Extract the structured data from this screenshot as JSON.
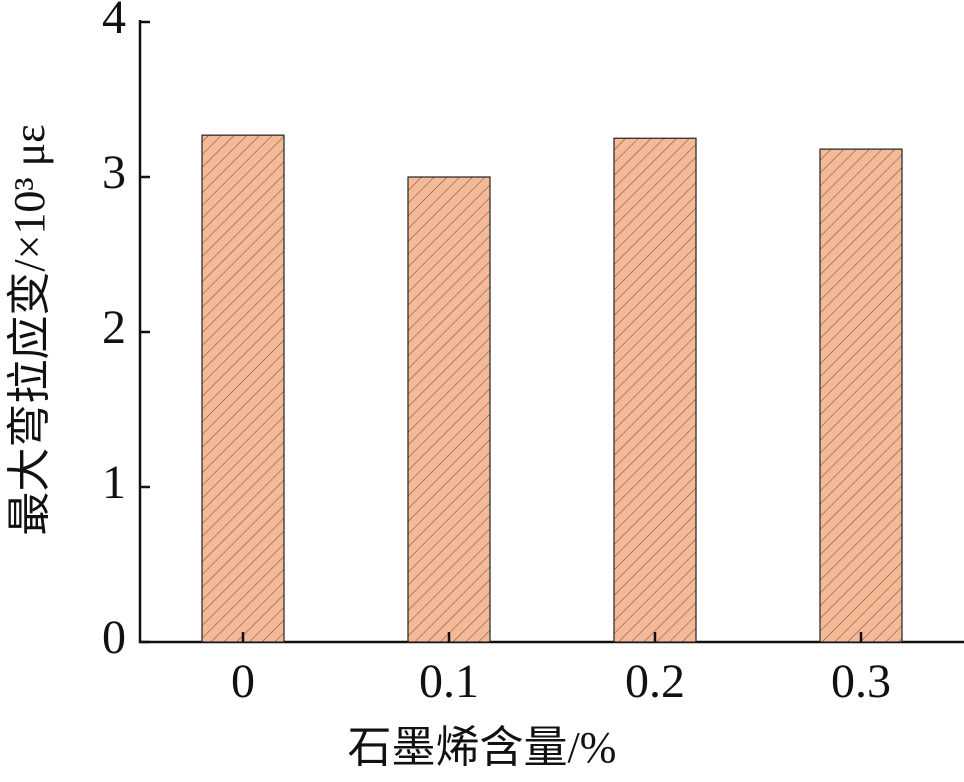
{
  "chart_data": {
    "type": "bar",
    "x_label": "石墨烯含量/%",
    "y_label": "最大弯拉应变/×10³ με",
    "categories": [
      "0",
      "0.1",
      "0.2",
      "0.3"
    ],
    "values": [
      3.27,
      3.0,
      3.25,
      3.18
    ],
    "color": "#f4b996",
    "ylim": [
      0,
      4
    ],
    "yticks": [
      0,
      1,
      2,
      3,
      4
    ],
    "grid": false
  }
}
